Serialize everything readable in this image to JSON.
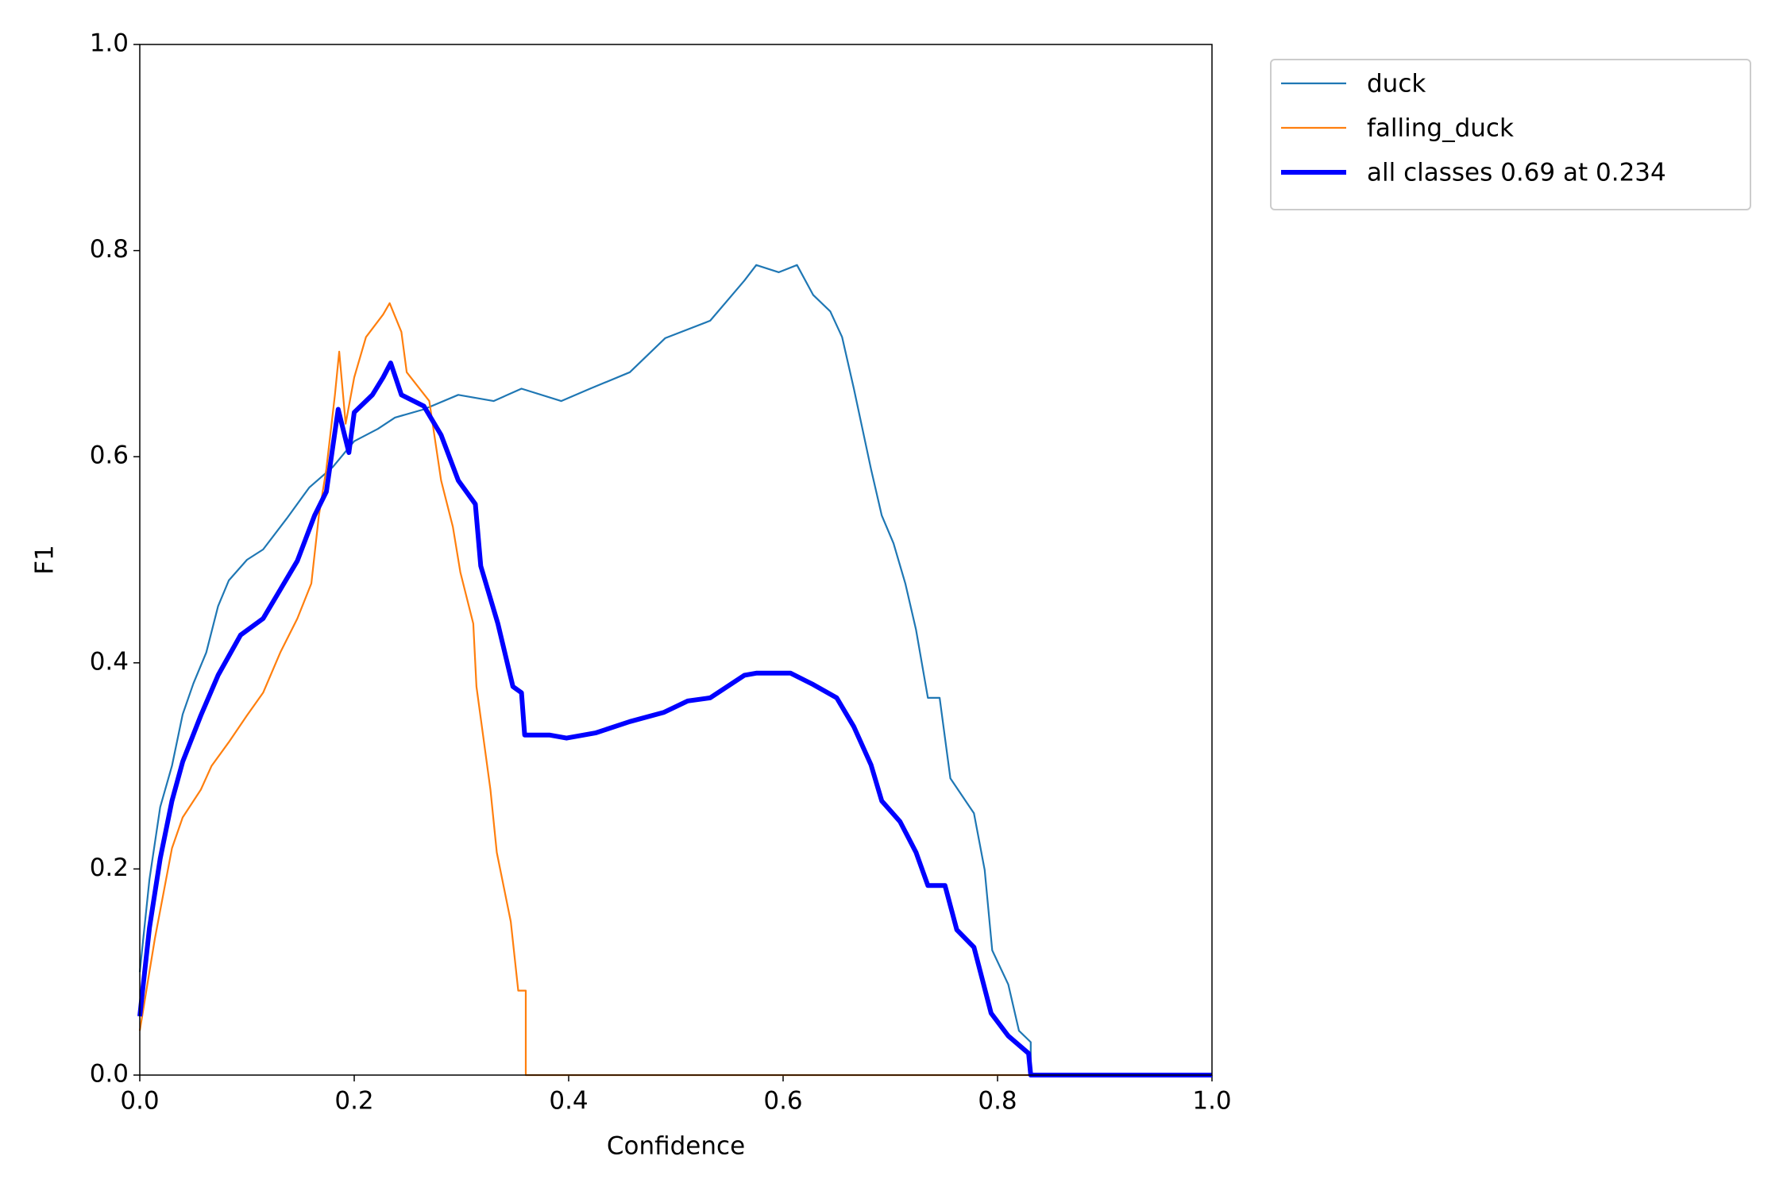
{
  "chart_data": {
    "type": "line",
    "xlabel": "Confidence",
    "ylabel": "F1",
    "xlim": [
      0,
      1
    ],
    "ylim": [
      0,
      1
    ],
    "xticks": [
      {
        "value": 0,
        "label": "0.0"
      },
      0.2,
      0.4,
      0.6,
      0.8,
      {
        "value": 1,
        "label": "1.0"
      }
    ],
    "yticks": [
      {
        "value": 0,
        "label": "0.0"
      },
      0.2,
      0.4,
      0.6,
      0.8,
      {
        "value": 1,
        "label": "1.0"
      }
    ],
    "legend": "outside-upper-right",
    "series": [
      {
        "name": "duck",
        "color": "#1f77b4",
        "width": "thin",
        "x": [
          0,
          0.009,
          0.019,
          0.03,
          0.04,
          0.05,
          0.062,
          0.073,
          0.083,
          0.1,
          0.115,
          0.137,
          0.158,
          0.18,
          0.2,
          0.222,
          0.238,
          0.265,
          0.297,
          0.33,
          0.356,
          0.393,
          0.42,
          0.457,
          0.49,
          0.532,
          0.564,
          0.575,
          0.596,
          0.613,
          0.628,
          0.644,
          0.655,
          0.666,
          0.682,
          0.692,
          0.703,
          0.714,
          0.724,
          0.735,
          0.746,
          0.756,
          0.778,
          0.788,
          0.795,
          0.81,
          0.82,
          0.831,
          0.831,
          1
        ],
        "values": [
          0.1,
          0.19,
          0.26,
          0.3,
          0.35,
          0.38,
          0.41,
          0.455,
          0.48,
          0.5,
          0.51,
          0.54,
          0.57,
          0.59,
          0.615,
          0.627,
          0.638,
          0.646,
          0.66,
          0.654,
          0.666,
          0.654,
          0.666,
          0.682,
          0.715,
          0.732,
          0.771,
          0.786,
          0.779,
          0.786,
          0.757,
          0.741,
          0.716,
          0.666,
          0.588,
          0.543,
          0.516,
          0.477,
          0.432,
          0.366,
          0.366,
          0.288,
          0.254,
          0.199,
          0.121,
          0.088,
          0.043,
          0.032,
          0,
          0
        ]
      },
      {
        "name": "falling_duck",
        "color": "#ff7f0e",
        "width": "thin",
        "x": [
          0,
          0.014,
          0.03,
          0.04,
          0.057,
          0.067,
          0.083,
          0.1,
          0.115,
          0.131,
          0.147,
          0.16,
          0.167,
          0.174,
          0.182,
          0.186,
          0.192,
          0.2,
          0.211,
          0.227,
          0.233,
          0.244,
          0.249,
          0.27,
          0.281,
          0.292,
          0.299,
          0.311,
          0.314,
          0.327,
          0.333,
          0.346,
          0.353,
          0.36,
          0.36,
          1
        ],
        "values": [
          0.043,
          0.132,
          0.22,
          0.25,
          0.277,
          0.3,
          0.323,
          0.349,
          0.371,
          0.41,
          0.443,
          0.477,
          0.543,
          0.588,
          0.66,
          0.702,
          0.632,
          0.677,
          0.716,
          0.738,
          0.749,
          0.721,
          0.682,
          0.654,
          0.577,
          0.532,
          0.488,
          0.438,
          0.377,
          0.277,
          0.216,
          0.149,
          0.082,
          0.082,
          0,
          0
        ]
      },
      {
        "name": "all classes 0.69 at 0.234",
        "color": "#0000ff",
        "width": "thick",
        "x": [
          0,
          0.009,
          0.019,
          0.03,
          0.04,
          0.057,
          0.073,
          0.094,
          0.115,
          0.131,
          0.147,
          0.163,
          0.174,
          0.185,
          0.195,
          0.2,
          0.217,
          0.227,
          0.234,
          0.244,
          0.265,
          0.281,
          0.297,
          0.313,
          0.318,
          0.334,
          0.348,
          0.356,
          0.359,
          0.382,
          0.398,
          0.425,
          0.457,
          0.489,
          0.511,
          0.532,
          0.564,
          0.575,
          0.607,
          0.628,
          0.65,
          0.666,
          0.682,
          0.692,
          0.709,
          0.724,
          0.735,
          0.751,
          0.762,
          0.778,
          0.794,
          0.81,
          0.829,
          0.831,
          1
        ],
        "values": [
          0.057,
          0.143,
          0.21,
          0.266,
          0.304,
          0.349,
          0.388,
          0.427,
          0.443,
          0.471,
          0.499,
          0.543,
          0.566,
          0.646,
          0.604,
          0.643,
          0.66,
          0.677,
          0.691,
          0.66,
          0.649,
          0.621,
          0.577,
          0.554,
          0.494,
          0.438,
          0.377,
          0.371,
          0.33,
          0.33,
          0.327,
          0.332,
          0.343,
          0.352,
          0.363,
          0.366,
          0.388,
          0.39,
          0.39,
          0.379,
          0.366,
          0.338,
          0.301,
          0.266,
          0.246,
          0.216,
          0.184,
          0.184,
          0.141,
          0.124,
          0.06,
          0.038,
          0.021,
          0,
          0
        ]
      }
    ]
  }
}
